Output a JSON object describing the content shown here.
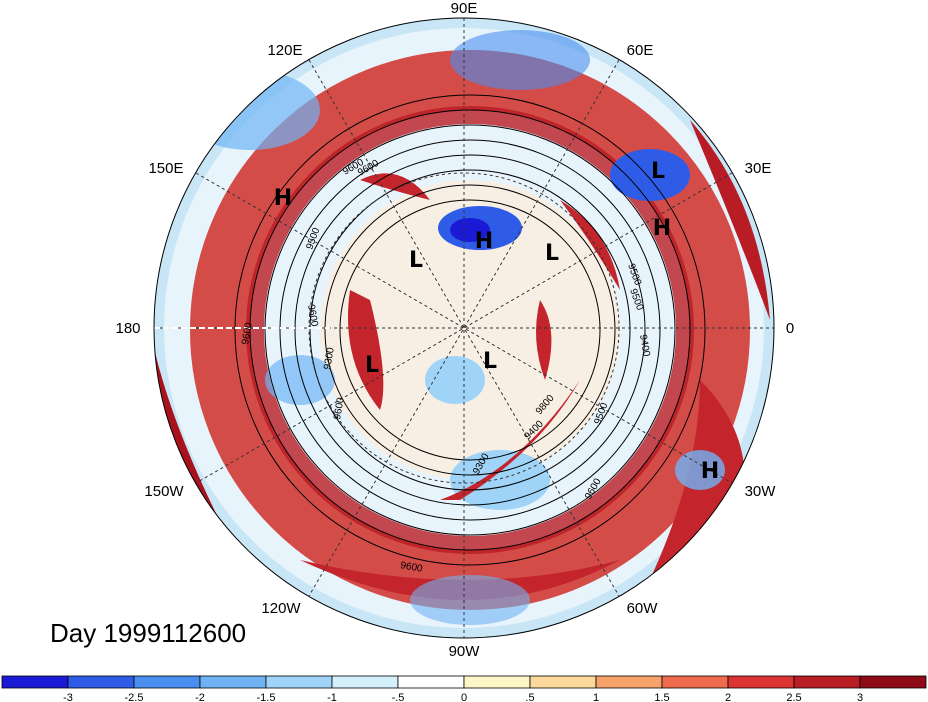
{
  "title": "Day 1999112600",
  "longitude_labels": [
    "90E",
    "60E",
    "30E",
    "0",
    "30W",
    "60W",
    "90W",
    "120W",
    "150W",
    "180",
    "150E",
    "120E"
  ],
  "pressure_centers": [
    {
      "type": "H"
    },
    {
      "type": "H"
    },
    {
      "type": "H"
    },
    {
      "type": "H"
    },
    {
      "type": "L"
    },
    {
      "type": "L"
    },
    {
      "type": "L"
    },
    {
      "type": "L"
    },
    {
      "type": "L"
    }
  ],
  "contour_labels": [
    "9600",
    "9500",
    "9500",
    "9600",
    "9600",
    "9300",
    "9600",
    "9500",
    "9400",
    "9800",
    "9400",
    "9500",
    "9600",
    "9300",
    "9600",
    "9600"
  ],
  "colorbar": {
    "labels": [
      "-3",
      "-2.5",
      "-2",
      "-1.5",
      "-1",
      "-.5",
      "0",
      ".5",
      "1",
      "1.5",
      "2",
      "2.5",
      "3"
    ],
    "colors": [
      "#1a1ad6",
      "#2f5ce6",
      "#4a8ff0",
      "#6fb3f5",
      "#9fd4f8",
      "#d2effa",
      "#ffffff",
      "#fff6c8",
      "#fbd99a",
      "#f6a36b",
      "#ef6b4e",
      "#dc3333",
      "#b81c24",
      "#8e0a16"
    ]
  }
}
